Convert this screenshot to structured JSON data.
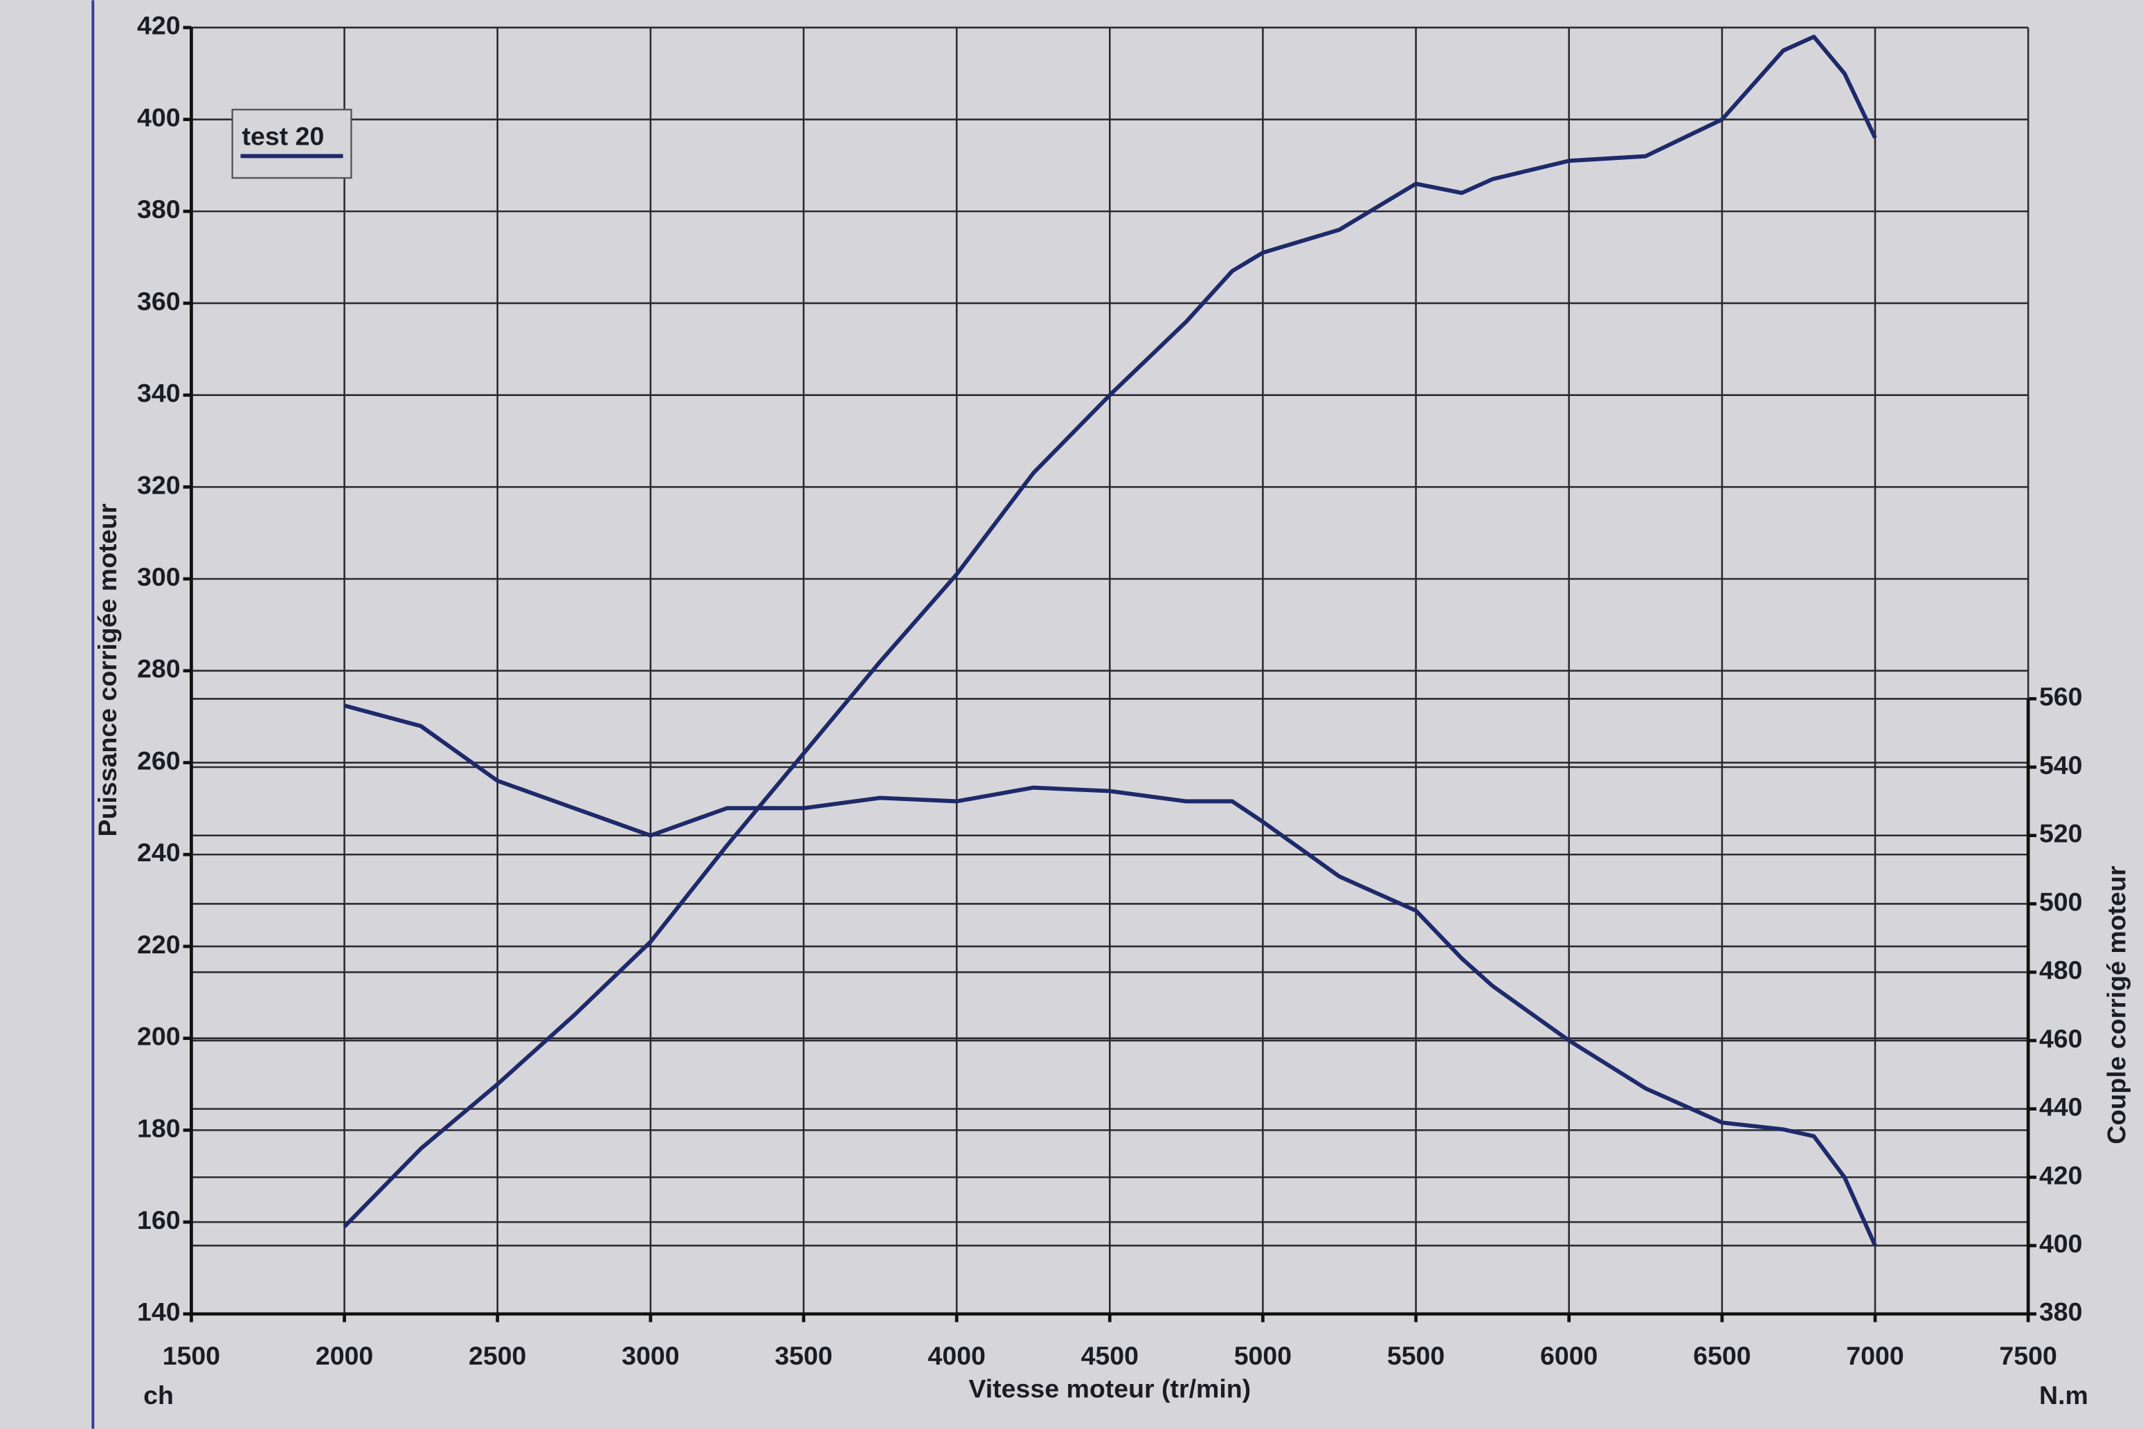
{
  "chart_data": {
    "type": "line",
    "x_label": "Vitesse moteur (tr/min)",
    "y_label": "Puissance corrigée moteur",
    "y2_label": "Couple corrigé moteur",
    "y_unit": "ch",
    "y2_unit": "N.m",
    "x": [
      2000,
      2250,
      2500,
      2750,
      3000,
      3250,
      3500,
      3750,
      4000,
      4250,
      4500,
      4750,
      4900,
      5000,
      5250,
      5500,
      5650,
      5750,
      6000,
      6250,
      6500,
      6700,
      6800,
      6900,
      7000
    ],
    "series": [
      {
        "name": "test 20",
        "color": "#1f2a6b",
        "values": [
          159,
          176,
          190,
          205,
          221,
          242,
          262,
          282,
          301,
          323,
          340,
          356,
          367,
          371,
          376,
          386,
          384,
          387,
          391,
          392,
          400,
          415,
          418,
          410,
          396
        ]
      },
      {
        "color": "#1f2a6b",
        "axis": "y2",
        "values": [
          558,
          552,
          536,
          528,
          520,
          528,
          528,
          531,
          530,
          534,
          533,
          530,
          530,
          524,
          508,
          498,
          484,
          476,
          460,
          446,
          436,
          434,
          432,
          420,
          400
        ]
      }
    ],
    "xlim": [
      1500,
      7500
    ],
    "xticks": [
      1500,
      2000,
      2500,
      3000,
      3500,
      4000,
      4500,
      5000,
      5500,
      6000,
      6500,
      7000,
      7500
    ],
    "ylim": [
      140,
      420
    ],
    "yticks": [
      140,
      160,
      180,
      200,
      220,
      240,
      260,
      280,
      300,
      320,
      340,
      360,
      380,
      400,
      420
    ],
    "y2lim": [
      380,
      756.4
    ],
    "y2ticks": [
      380,
      400,
      420,
      440,
      460,
      480,
      500,
      520,
      540,
      560
    ],
    "grid": true,
    "legend": "upper left"
  }
}
